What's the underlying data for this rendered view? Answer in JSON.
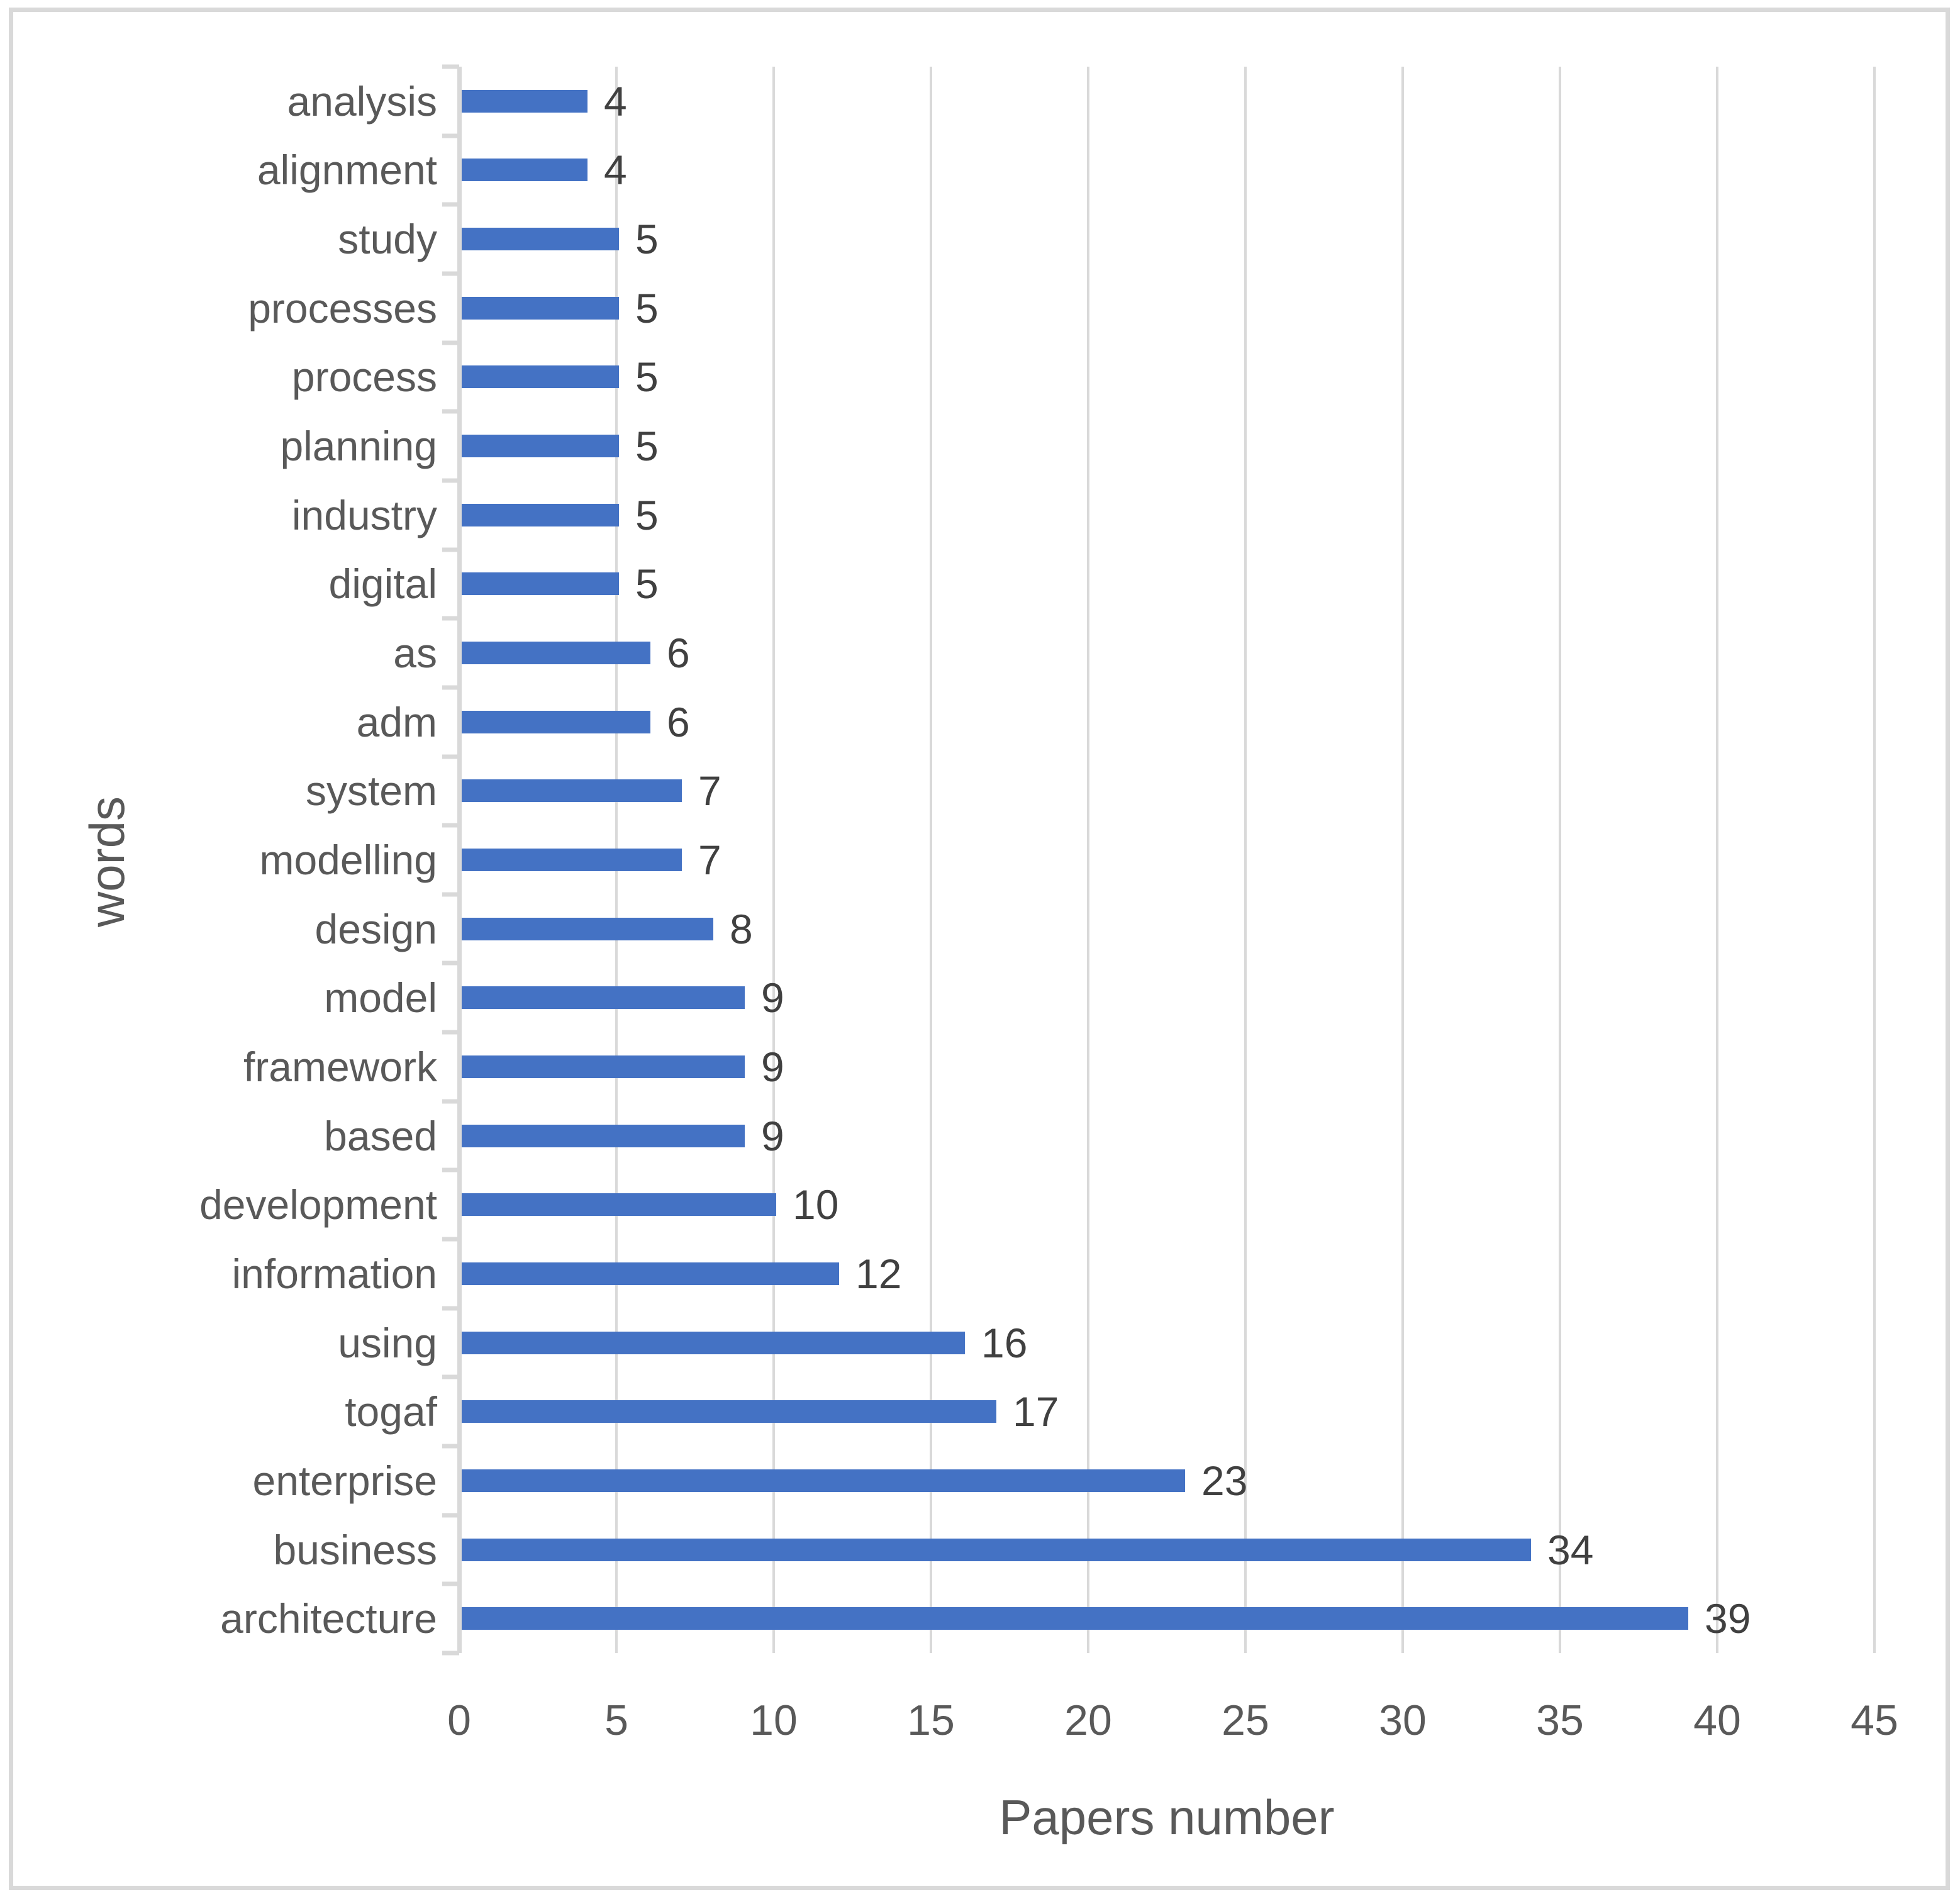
{
  "chart_data": {
    "type": "bar",
    "orientation": "horizontal",
    "title": "",
    "xlabel": "Papers number",
    "ylabel": "words",
    "categories": [
      "analysis",
      "alignment",
      "study",
      "processes",
      "process",
      "planning",
      "industry",
      "digital",
      "as",
      "adm",
      "system",
      "modelling",
      "design",
      "model",
      "framework",
      "based",
      "development",
      "information",
      "using",
      "togaf",
      "enterprise",
      "business",
      "architecture"
    ],
    "values": [
      4,
      4,
      5,
      5,
      5,
      5,
      5,
      5,
      6,
      6,
      7,
      7,
      8,
      9,
      9,
      9,
      10,
      12,
      16,
      17,
      23,
      34,
      39
    ],
    "data_labels": [
      "4",
      "4",
      "5",
      "5",
      "5",
      "5",
      "5",
      "5",
      "6",
      "6",
      "7",
      "7",
      "8",
      "9",
      "9",
      "9",
      "10",
      "12",
      "16",
      "17",
      "23",
      "34",
      "39"
    ],
    "xlim": [
      0,
      45
    ],
    "xticks": [
      0,
      5,
      10,
      15,
      20,
      25,
      30,
      35,
      40,
      45
    ],
    "grid": true,
    "legend": false,
    "colors": {
      "bar": "#4472C4",
      "gridline": "#D9D9D9",
      "axis_line": "#D9D9D9",
      "frame_border": "#D9D9D9",
      "tick_text": "#595959",
      "category_text": "#595959",
      "data_label_text": "#404040",
      "axis_title_text": "#595959"
    }
  }
}
